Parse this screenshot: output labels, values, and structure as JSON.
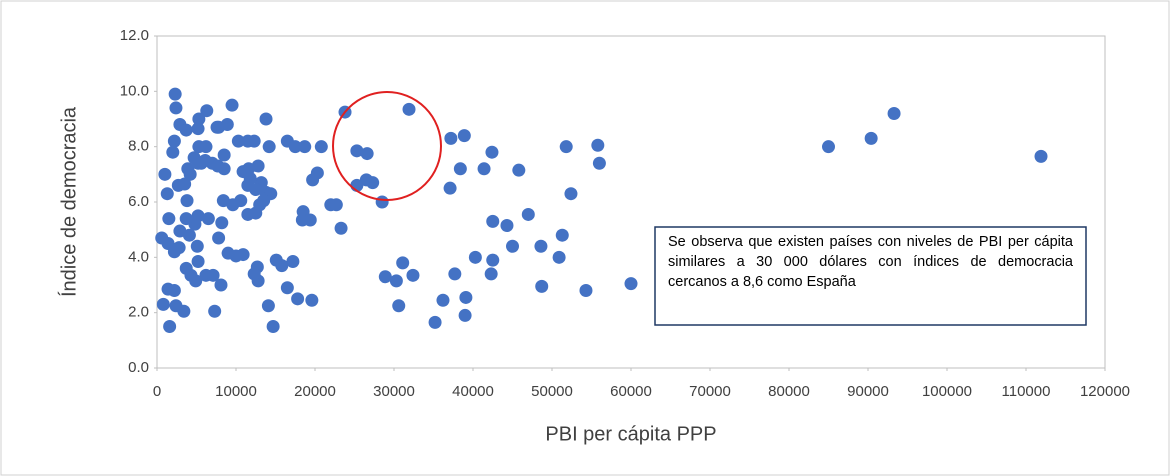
{
  "chart_data": {
    "type": "scatter",
    "x_label": "PBI per cápita PPP",
    "y_label": "Índice de democracia",
    "annotation": "Se observa que existen países con niveles de PBI per cápita similares a 30 000 dólares con índices de democracia cercanos a 8,6 como España",
    "xlim": [
      0,
      120000
    ],
    "xticks": [
      0,
      10000,
      20000,
      30000,
      40000,
      50000,
      60000,
      70000,
      80000,
      90000,
      100000,
      110000,
      120000
    ],
    "ylim": [
      0,
      12
    ],
    "yticks": [
      {
        "value": 0,
        "label": "0.0"
      },
      {
        "value": 2,
        "label": "2.0"
      },
      {
        "value": 4,
        "label": "4.0"
      },
      {
        "value": 6,
        "label": "6.0"
      },
      {
        "value": 8,
        "label": "8.0"
      },
      {
        "value": 10,
        "label": "10.0"
      },
      {
        "value": 12,
        "label": "12.0"
      }
    ],
    "grid": false,
    "series": [
      {
        "color": "#4472c4",
        "x": [
          2300,
          2400,
          2900,
          3700,
          2200,
          2000,
          9500,
          6300,
          5300,
          8900,
          7800,
          13800,
          12300,
          16500,
          17500,
          18700,
          11500,
          10300,
          14200,
          12800,
          11600,
          10900,
          8500,
          8500,
          7000,
          5200,
          6100,
          7600,
          7700,
          23800,
          31900,
          25300,
          26600,
          25300,
          26500,
          27300,
          28500,
          22000,
          22700,
          23300,
          19700,
          20300,
          18500,
          18400,
          19400,
          20800,
          38900,
          37200,
          38400,
          37100,
          41400,
          42400,
          45800,
          51800,
          55800,
          56000,
          52400,
          47000,
          42500,
          44300,
          40300,
          42500,
          45000,
          48600,
          51300,
          50900,
          42300,
          37700,
          32400,
          31100,
          28900,
          30300,
          39100,
          36200,
          48700,
          54300,
          60000,
          30600,
          35200,
          39000,
          85000,
          90400,
          93300,
          111900,
          19600,
          17800,
          16500,
          17200,
          15800,
          14100,
          14700,
          12700,
          12800,
          12300,
          10900,
          10000,
          9000,
          7800,
          5100,
          5200,
          6200,
          7100,
          8100,
          7300,
          3400,
          2400,
          1400,
          2200,
          1600,
          800,
          600,
          1400,
          2200,
          2900,
          4100,
          4800,
          5200,
          6500,
          3800,
          3700,
          2800,
          3700,
          4300,
          4900,
          1500,
          1300,
          1000,
          2700,
          3500,
          4200,
          3900,
          4700,
          5600,
          5300,
          6200,
          5200,
          8400,
          8200,
          9600,
          10600,
          11500,
          12500,
          13000,
          13800,
          13200,
          12500,
          11500,
          11800,
          14400,
          13500,
          15100
        ],
        "values": [
          9.9,
          9.4,
          8.8,
          8.6,
          8.2,
          7.8,
          9.5,
          9.3,
          9.0,
          8.8,
          8.7,
          9.0,
          8.2,
          8.2,
          8.0,
          8.0,
          8.2,
          8.2,
          8.0,
          7.3,
          7.2,
          7.1,
          7.7,
          7.2,
          7.4,
          7.4,
          7.5,
          8.7,
          7.3,
          9.25,
          9.35,
          7.85,
          7.75,
          6.6,
          6.8,
          6.7,
          6.0,
          5.9,
          5.9,
          5.05,
          6.8,
          7.05,
          5.65,
          5.35,
          5.35,
          8.0,
          8.4,
          8.3,
          7.2,
          6.5,
          7.2,
          7.8,
          7.15,
          8.0,
          8.05,
          7.4,
          6.3,
          5.55,
          5.3,
          5.15,
          4.0,
          3.9,
          4.4,
          4.4,
          4.8,
          4.0,
          3.4,
          3.4,
          3.35,
          3.8,
          3.3,
          3.15,
          2.55,
          2.45,
          2.95,
          2.8,
          3.05,
          2.25,
          1.65,
          1.9,
          8.0,
          8.3,
          9.2,
          7.65,
          2.45,
          2.5,
          2.9,
          3.85,
          3.7,
          2.25,
          1.5,
          3.65,
          3.15,
          3.4,
          4.1,
          4.05,
          4.15,
          4.7,
          4.4,
          3.85,
          3.35,
          3.35,
          3.0,
          2.05,
          2.05,
          2.25,
          2.85,
          2.8,
          1.5,
          2.3,
          4.7,
          4.5,
          4.2,
          4.95,
          4.8,
          5.2,
          5.5,
          5.4,
          6.05,
          5.4,
          4.35,
          3.6,
          3.35,
          3.15,
          5.4,
          6.3,
          7.0,
          6.6,
          6.65,
          7.0,
          7.2,
          7.6,
          7.4,
          8.0,
          8.0,
          8.65,
          6.05,
          5.25,
          5.9,
          6.05,
          5.55,
          5.6,
          5.9,
          6.35,
          6.7,
          6.45,
          6.6,
          6.85,
          6.3,
          6.05,
          3.9
        ]
      }
    ]
  }
}
